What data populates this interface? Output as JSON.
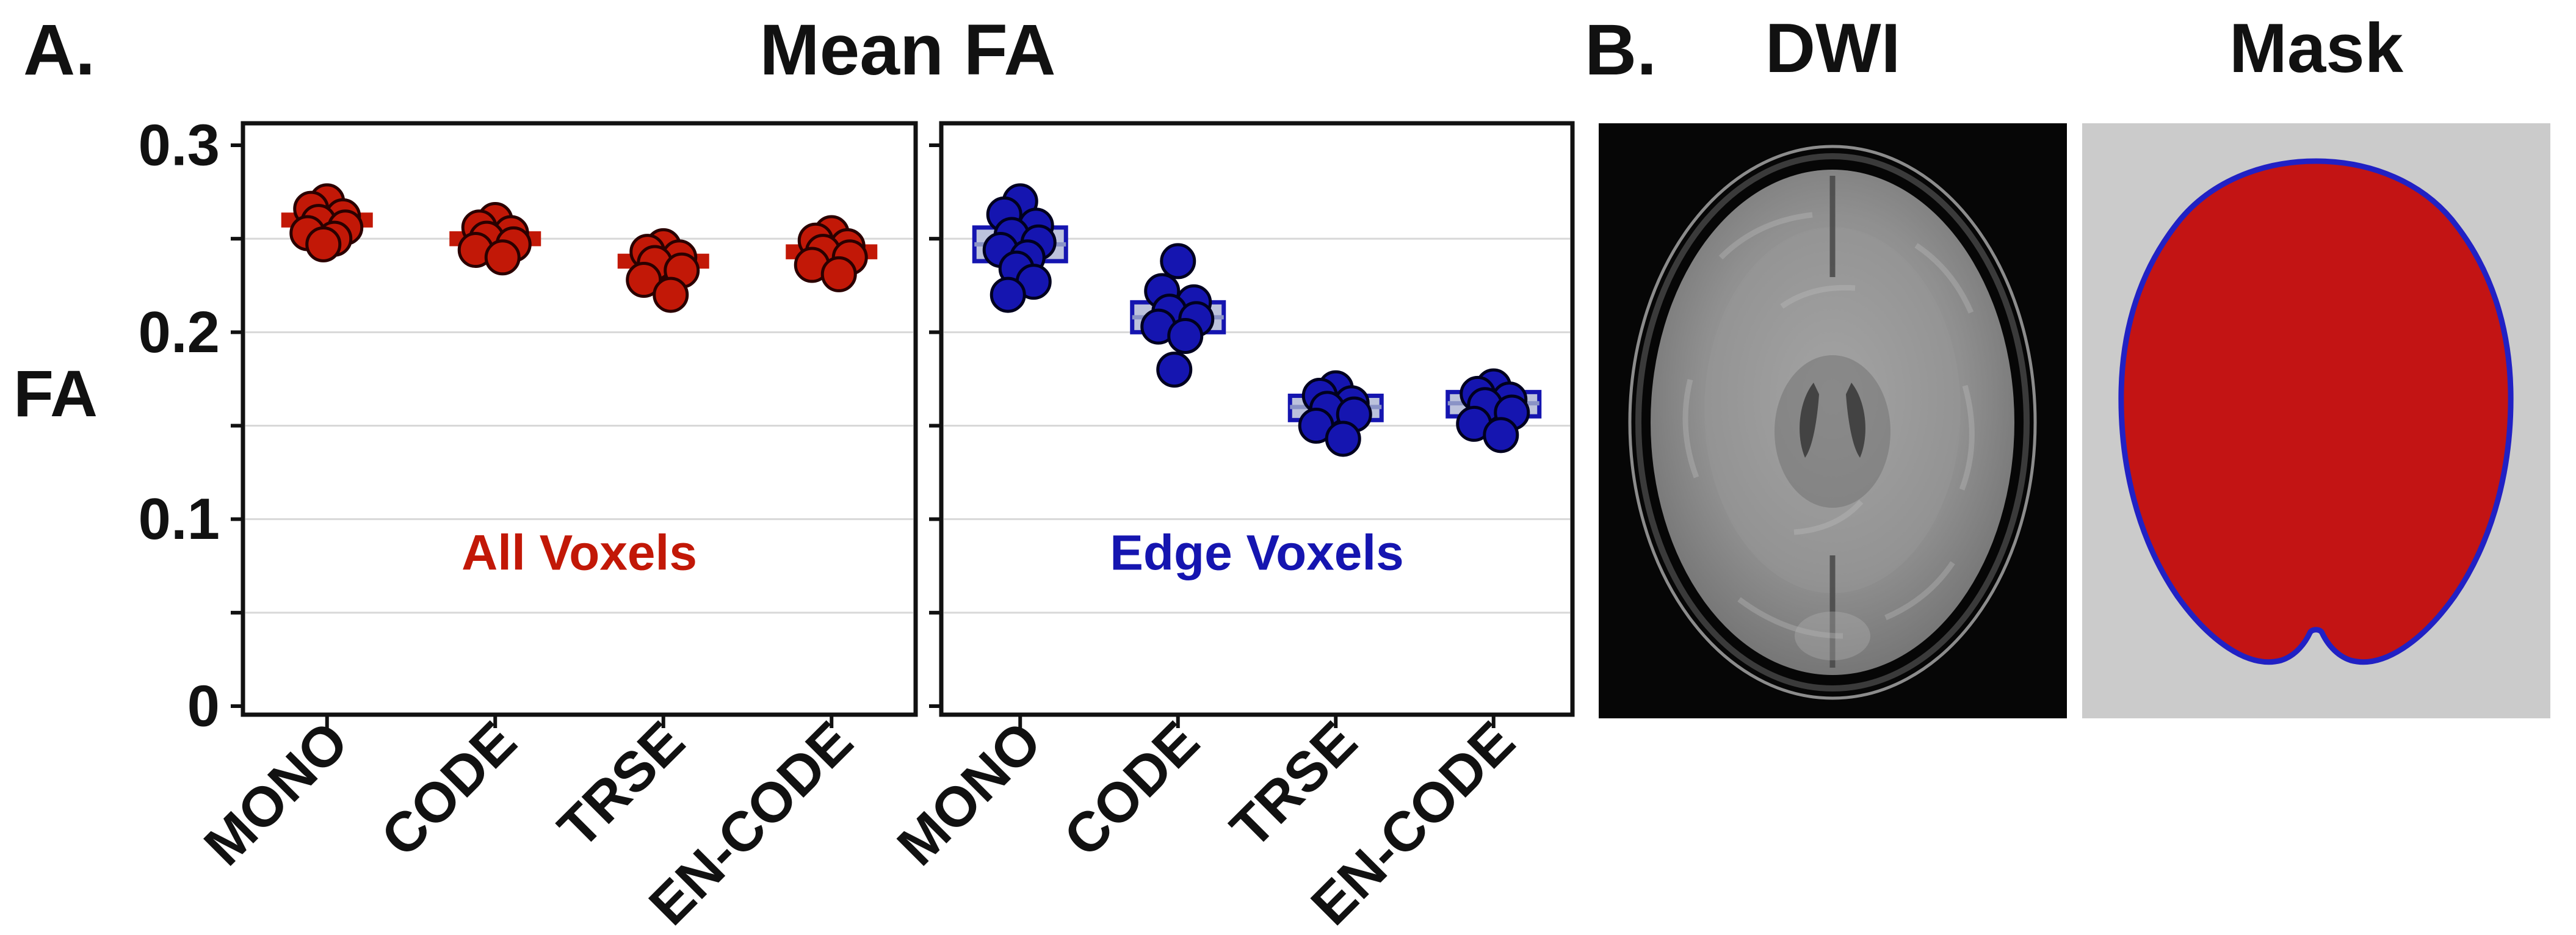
{
  "figure": {
    "panel_a_label": "A.",
    "panel_a_title": "Mean FA",
    "y_axis_label": "FA",
    "panel_b_label": "B.",
    "dwi_title": "DWI",
    "mask_title": "Mask"
  },
  "colors": {
    "all_voxels_red": "#C21807",
    "edge_voxels_blue": "#1515B0",
    "grid": "#D8D8D8",
    "axis": "#111111",
    "mask_fill_red": "#C31414",
    "mask_outline_blue": "#2121C4",
    "mask_background": "#CBCBCB",
    "dwi_background": "#060606"
  },
  "chart_data": [
    {
      "type": "scatter",
      "title": "Mean FA",
      "annotation": "All Voxels",
      "annotation_y": 0.073,
      "color": "#C21807",
      "dot_edge": "#2A0000",
      "box_style": "solid",
      "categories": [
        "MONO",
        "CODE",
        "TRSE",
        "EN-CODE"
      ],
      "xlabel": "",
      "ylabel": "FA",
      "ylim": [
        0,
        0.3
      ],
      "yticks": [
        0,
        0.1,
        0.2,
        0.3
      ],
      "ytick_labels": [
        "0",
        "0.1",
        "0.2",
        "0.3"
      ],
      "grid_step": 0.05,
      "show_ytick_labels": true,
      "groups": [
        {
          "category": "MONO",
          "points": [
            0.27,
            0.266,
            0.262,
            0.259,
            0.256,
            0.253,
            0.25,
            0.247
          ],
          "box_low": 0.256,
          "box_high": 0.264,
          "median": 0.26
        },
        {
          "category": "CODE",
          "points": [
            0.26,
            0.256,
            0.253,
            0.25,
            0.247,
            0.244,
            0.24
          ],
          "box_low": 0.246,
          "box_high": 0.254,
          "median": 0.25
        },
        {
          "category": "TRSE",
          "points": [
            0.246,
            0.243,
            0.24,
            0.237,
            0.233,
            0.228,
            0.22
          ],
          "box_low": 0.234,
          "box_high": 0.242,
          "median": 0.238
        },
        {
          "category": "EN-CODE",
          "points": [
            0.253,
            0.249,
            0.246,
            0.243,
            0.24,
            0.236,
            0.231
          ],
          "box_low": 0.239,
          "box_high": 0.247,
          "median": 0.243
        }
      ]
    },
    {
      "type": "scatter",
      "title": "Mean FA",
      "annotation": "Edge Voxels",
      "annotation_y": 0.073,
      "color": "#1515B0",
      "dot_edge": "#00001F",
      "box_style": "outlined",
      "box_fill": "#BCC2DC",
      "median_color": "#8A93C6",
      "categories": [
        "MONO",
        "CODE",
        "TRSE",
        "EN-CODE"
      ],
      "xlabel": "",
      "ylabel": "",
      "ylim": [
        0,
        0.3
      ],
      "yticks": [
        0,
        0.1,
        0.2,
        0.3
      ],
      "ytick_labels": [
        "0",
        "0.1",
        "0.2",
        "0.3"
      ],
      "grid_step": 0.05,
      "show_ytick_labels": false,
      "groups": [
        {
          "category": "MONO",
          "points": [
            0.27,
            0.263,
            0.257,
            0.252,
            0.248,
            0.244,
            0.24,
            0.234,
            0.227,
            0.22
          ],
          "box_low": 0.238,
          "box_high": 0.256,
          "median": 0.247
        },
        {
          "category": "CODE",
          "points": [
            0.238,
            0.222,
            0.216,
            0.211,
            0.207,
            0.203,
            0.198,
            0.18
          ],
          "box_low": 0.2,
          "box_high": 0.216,
          "median": 0.208
        },
        {
          "category": "TRSE",
          "points": [
            0.17,
            0.166,
            0.162,
            0.159,
            0.156,
            0.15,
            0.143
          ],
          "box_low": 0.153,
          "box_high": 0.166,
          "median": 0.16
        },
        {
          "category": "EN-CODE",
          "points": [
            0.171,
            0.167,
            0.164,
            0.161,
            0.157,
            0.151,
            0.145
          ],
          "box_low": 0.155,
          "box_high": 0.168,
          "median": 0.162
        }
      ]
    }
  ]
}
